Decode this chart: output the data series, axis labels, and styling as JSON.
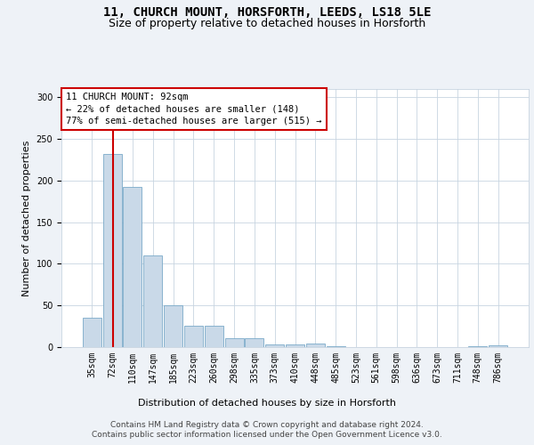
{
  "title": "11, CHURCH MOUNT, HORSFORTH, LEEDS, LS18 5LE",
  "subtitle": "Size of property relative to detached houses in Horsforth",
  "xlabel": "Distribution of detached houses by size in Horsforth",
  "ylabel": "Number of detached properties",
  "bar_labels": [
    "35sqm",
    "72sqm",
    "110sqm",
    "147sqm",
    "185sqm",
    "223sqm",
    "260sqm",
    "298sqm",
    "335sqm",
    "373sqm",
    "410sqm",
    "448sqm",
    "485sqm",
    "523sqm",
    "561sqm",
    "598sqm",
    "636sqm",
    "673sqm",
    "711sqm",
    "748sqm",
    "786sqm"
  ],
  "bar_values": [
    35,
    232,
    192,
    110,
    50,
    26,
    26,
    11,
    11,
    3,
    3,
    4,
    1,
    0,
    0,
    0,
    0,
    0,
    0,
    1,
    2
  ],
  "bar_color": "#c9d9e8",
  "bar_edge_color": "#7aaac8",
  "annotation_text": "11 CHURCH MOUNT: 92sqm\n← 22% of detached houses are smaller (148)\n77% of semi-detached houses are larger (515) →",
  "annotation_box_color": "#ffffff",
  "annotation_box_edge_color": "#cc0000",
  "red_line_color": "#cc0000",
  "bg_color": "#eef2f7",
  "plot_bg_color": "#ffffff",
  "grid_color": "#c8d4e0",
  "footer_text": "Contains HM Land Registry data © Crown copyright and database right 2024.\nContains public sector information licensed under the Open Government Licence v3.0.",
  "ylim": [
    0,
    310
  ],
  "yticks": [
    0,
    50,
    100,
    150,
    200,
    250,
    300
  ],
  "title_fontsize": 10,
  "subtitle_fontsize": 9,
  "axis_label_fontsize": 8,
  "tick_fontsize": 7,
  "annotation_fontsize": 7.5,
  "footer_fontsize": 6.5
}
